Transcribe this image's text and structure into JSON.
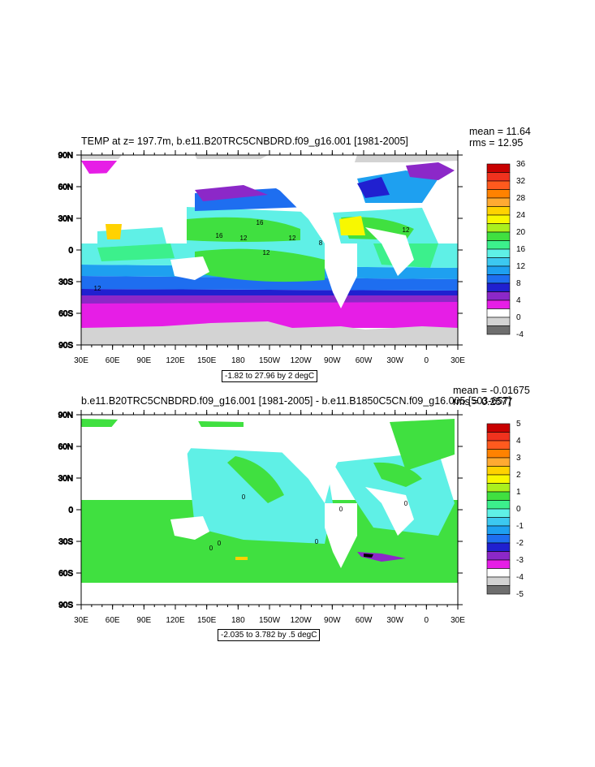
{
  "colors": {
    "white": "#ffffff",
    "land_ice": "#d3d3d3",
    "dark_gray": "#6e6e6e",
    "magenta": "#e61ee6",
    "purple": "#8c28c8",
    "dark_blue": "#2020d0",
    "blue": "#1e6ef0",
    "light_blue": "#1ea0f0",
    "cyan_blue": "#3cc8f0",
    "cyan": "#5ff0e6",
    "teal_green": "#3cf08c",
    "green": "#40e040",
    "yellow_green": "#aaf01e",
    "yellow": "#f8f800",
    "gold": "#ffd200",
    "light_orange": "#ffaa32",
    "orange": "#ff8200",
    "dark_orange": "#ff5a1e",
    "red_orange": "#f0321e",
    "red": "#c80000"
  },
  "panel1": {
    "title": "TEMP at z= 197.7m, b.e11.B20TRC5CNBDRD.f09_g16.001 [1981-2005]",
    "mean": "mean = 11.64",
    "rms": "rms = 12.95",
    "range": "-1.82 to 27.96 by 2 degC",
    "lat_labels": [
      "90N",
      "60N",
      "30N",
      "0",
      "30S",
      "60S",
      "90S"
    ],
    "lon_labels": [
      "30E",
      "60E",
      "90E",
      "120E",
      "150E",
      "180",
      "150W",
      "120W",
      "90W",
      "60W",
      "30W",
      "0",
      "30E"
    ],
    "colorbar_labels": [
      "36",
      "32",
      "28",
      "24",
      "20",
      "16",
      "12",
      "8",
      "4",
      "0",
      "-4"
    ],
    "contour_labels": [
      "16",
      "12",
      "12",
      "16",
      "12",
      "12",
      "12",
      "8"
    ]
  },
  "panel2": {
    "title": "b.e11.B20TRC5CNBDRD.f09_g16.001 [1981-2005] - b.e11.B1850C5CN.f09_g16.005 [503-657]",
    "mean": "mean = -0.01675",
    "rms": "rms = 0.2577",
    "range": "-2.035 to 3.782 by .5 degC",
    "lat_labels": [
      "90N",
      "60N",
      "30N",
      "0",
      "30S",
      "60S",
      "90S"
    ],
    "lon_labels": [
      "30E",
      "60E",
      "90E",
      "120E",
      "150E",
      "180",
      "150W",
      "120W",
      "90W",
      "60W",
      "30W",
      "0",
      "30E"
    ],
    "colorbar_labels": [
      "5",
      "4",
      "3",
      "2",
      "1",
      "0",
      "-1",
      "-2",
      "-3",
      "-4",
      "-5"
    ],
    "contour_labels": [
      "0",
      "0",
      "0",
      "0",
      "0",
      "0"
    ]
  }
}
